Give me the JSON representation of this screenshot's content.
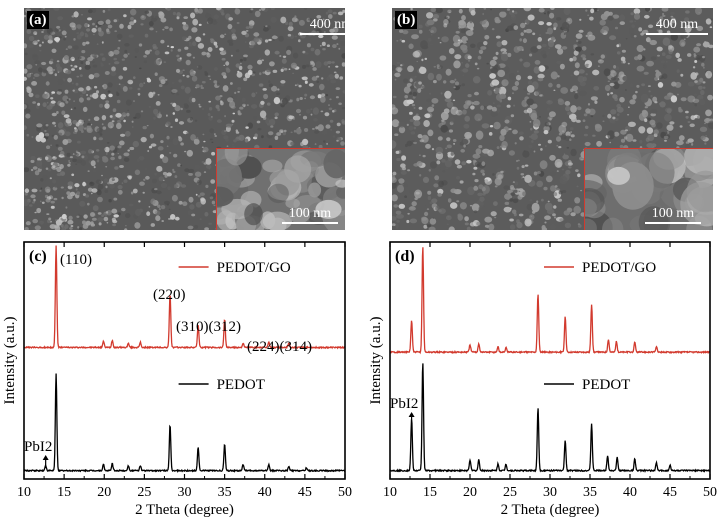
{
  "sem_panels": [
    {
      "id": "a",
      "label": "(a)",
      "scale_main": "400 nm",
      "scale_inset": "100 nm"
    },
    {
      "id": "b",
      "label": "(b)",
      "scale_main": "400 nm",
      "scale_inset": "100 nm"
    }
  ],
  "chart_data": [
    {
      "type": "line",
      "panel_label": "(c)",
      "xlabel": "2 Theta (degree)",
      "ylabel": "Intensity (a.u.)",
      "xlim": [
        10,
        50
      ],
      "xticks": [
        10,
        15,
        20,
        25,
        30,
        35,
        40,
        45,
        50
      ],
      "legend_placement": "top-right",
      "series": [
        {
          "name": "PEDOT/GO",
          "color": "#d23a2e",
          "offset": 0.55,
          "scale": 0.43,
          "peaks": [
            [
              14.0,
              1.0
            ],
            [
              19.9,
              0.06
            ],
            [
              21.0,
              0.07
            ],
            [
              23.0,
              0.04
            ],
            [
              24.5,
              0.05
            ],
            [
              28.2,
              0.53
            ],
            [
              31.7,
              0.22
            ],
            [
              35.0,
              0.28
            ],
            [
              37.3,
              0.04
            ],
            [
              40.5,
              0.05
            ],
            [
              43.0,
              0.04
            ]
          ]
        },
        {
          "name": "PEDOT",
          "color": "#000000",
          "offset": 0.03,
          "scale": 0.43,
          "peaks": [
            [
              12.7,
              0.05
            ],
            [
              14.0,
              0.95
            ],
            [
              19.9,
              0.06
            ],
            [
              21.0,
              0.07
            ],
            [
              23.0,
              0.05
            ],
            [
              24.5,
              0.05
            ],
            [
              28.2,
              0.45
            ],
            [
              31.7,
              0.23
            ],
            [
              35.0,
              0.26
            ],
            [
              37.3,
              0.06
            ],
            [
              40.5,
              0.06
            ],
            [
              43.0,
              0.04
            ],
            [
              45.2,
              0.03
            ]
          ]
        }
      ],
      "annotations": [
        {
          "text": "(110)",
          "x": 14.0
        },
        {
          "text": "(220)",
          "x": 28.2
        },
        {
          "text": "(310)(312)",
          "x": 33.3
        },
        {
          "text": "(224)(314)",
          "x": 42.0
        },
        {
          "text": "PbI2",
          "x": 12.7
        }
      ]
    },
    {
      "type": "line",
      "panel_label": "(d)",
      "xlabel": "2 Theta (degree)",
      "ylabel": "Intensity (a.u.)",
      "xlim": [
        10,
        50
      ],
      "xticks": [
        10,
        15,
        20,
        25,
        30,
        35,
        40,
        45,
        50
      ],
      "legend_placement": "top-right",
      "series": [
        {
          "name": "PEDOT/GO",
          "color": "#d23a2e",
          "offset": 0.53,
          "scale": 0.45,
          "peaks": [
            [
              12.7,
              0.3
            ],
            [
              14.1,
              1.0
            ],
            [
              20.0,
              0.07
            ],
            [
              21.1,
              0.08
            ],
            [
              23.5,
              0.05
            ],
            [
              24.5,
              0.04
            ],
            [
              28.5,
              0.55
            ],
            [
              31.9,
              0.33
            ],
            [
              35.2,
              0.45
            ],
            [
              37.3,
              0.12
            ],
            [
              38.3,
              0.1
            ],
            [
              40.6,
              0.09
            ],
            [
              43.3,
              0.05
            ]
          ]
        },
        {
          "name": "PEDOT",
          "color": "#000000",
          "offset": 0.03,
          "scale": 0.46,
          "peaks": [
            [
              12.7,
              0.48
            ],
            [
              14.1,
              1.0
            ],
            [
              20.0,
              0.1
            ],
            [
              21.1,
              0.1
            ],
            [
              23.5,
              0.06
            ],
            [
              24.5,
              0.06
            ],
            [
              28.5,
              0.58
            ],
            [
              31.9,
              0.28
            ],
            [
              35.2,
              0.43
            ],
            [
              37.2,
              0.14
            ],
            [
              38.4,
              0.12
            ],
            [
              40.6,
              0.11
            ],
            [
              43.3,
              0.07
            ],
            [
              45.0,
              0.05
            ]
          ]
        }
      ],
      "annotations": [
        {
          "text": "PbI2",
          "x": 12.7
        }
      ]
    }
  ]
}
